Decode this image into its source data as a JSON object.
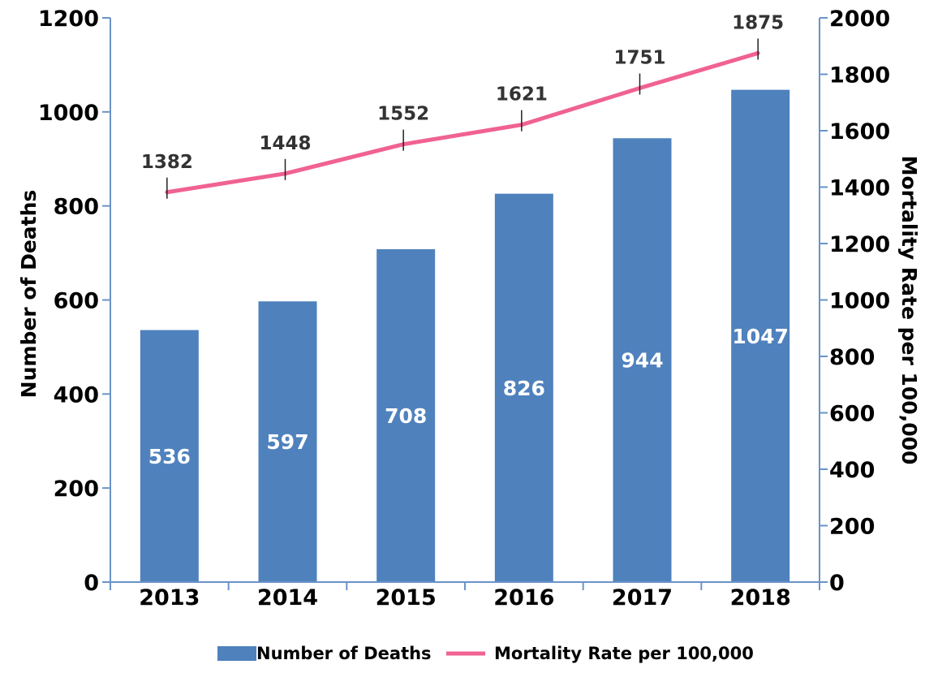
{
  "chart_data": {
    "type": "bar",
    "categories": [
      "2013",
      "2014",
      "2015",
      "2016",
      "2017",
      "2018"
    ],
    "series": [
      {
        "name": "Number of Deaths",
        "type": "bar",
        "axis": "left",
        "values": [
          536,
          597,
          708,
          826,
          944,
          1047
        ],
        "color": "#4f81bd"
      },
      {
        "name": "Mortality Rate per 100,000",
        "type": "line",
        "axis": "right",
        "values": [
          1382,
          1448,
          1552,
          1621,
          1751,
          1875
        ],
        "color": "#f06292"
      }
    ],
    "ylabel": "Number of Deaths",
    "ylim": [
      0,
      1200
    ],
    "y_ticks": [
      "0",
      "200",
      "400",
      "600",
      "800",
      "1000",
      "1200"
    ],
    "y2label": "Mortality Rate per 100,000",
    "y2lim": [
      0,
      2000
    ],
    "y2_ticks": [
      "0",
      "200",
      "400",
      "600",
      "800",
      "1000",
      "1200",
      "1400",
      "1600",
      "1800",
      "2000"
    ],
    "grid": false,
    "legend_position": "bottom",
    "axis_color": "#6a93c8"
  }
}
